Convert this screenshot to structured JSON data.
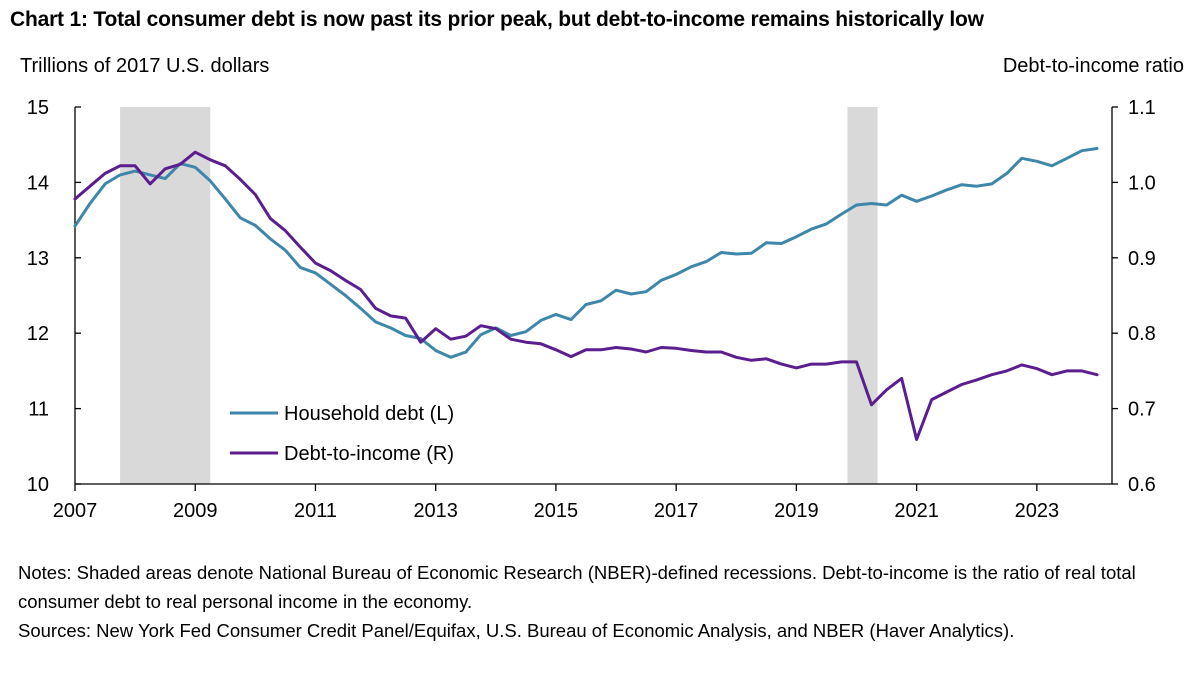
{
  "chart_data": {
    "type": "line",
    "title": "Chart 1: Total consumer debt is now past its prior peak, but debt-to-income remains historically low",
    "ylabel_left": "Trillions of 2017 U.S. dollars",
    "ylabel_right": "Debt-to-income ratio",
    "ylim_left": [
      10,
      15
    ],
    "ylim_right": [
      0.6,
      1.1
    ],
    "xlim": [
      2007,
      2024.25
    ],
    "x_ticks": [
      2007,
      2009,
      2011,
      2013,
      2015,
      2017,
      2019,
      2021,
      2023
    ],
    "x_tick_labels": [
      "2007",
      "2009",
      "2011",
      "2013",
      "2015",
      "2017",
      "2019",
      "2021",
      "2023"
    ],
    "y_ticks_left": [
      10,
      11,
      12,
      13,
      14,
      15
    ],
    "y_tick_labels_left": [
      "10",
      "11",
      "12",
      "13",
      "14",
      "15"
    ],
    "y_ticks_right": [
      0.6,
      0.7,
      0.8,
      0.9,
      1.0,
      1.1
    ],
    "y_tick_labels_right": [
      "0.6",
      "0.7",
      "0.8",
      "0.9",
      "1.0",
      "1.1"
    ],
    "recessions": [
      [
        2007.75,
        2009.25
      ],
      [
        2019.85,
        2020.35
      ]
    ],
    "legend_position": "lower-left",
    "series": [
      {
        "name": "Household debt (L)",
        "axis": "left",
        "color": "#3e86aa",
        "x": [
          2007.0,
          2007.25,
          2007.5,
          2007.75,
          2008.0,
          2008.25,
          2008.5,
          2008.75,
          2009.0,
          2009.25,
          2009.5,
          2009.75,
          2010.0,
          2010.25,
          2010.5,
          2010.75,
          2011.0,
          2011.25,
          2011.5,
          2011.75,
          2012.0,
          2012.25,
          2012.5,
          2012.75,
          2013.0,
          2013.25,
          2013.5,
          2013.75,
          2014.0,
          2014.25,
          2014.5,
          2014.75,
          2015.0,
          2015.25,
          2015.5,
          2015.75,
          2016.0,
          2016.25,
          2016.5,
          2016.75,
          2017.0,
          2017.25,
          2017.5,
          2017.75,
          2018.0,
          2018.25,
          2018.5,
          2018.75,
          2019.0,
          2019.25,
          2019.5,
          2019.75,
          2020.0,
          2020.25,
          2020.5,
          2020.75,
          2021.0,
          2021.25,
          2021.5,
          2021.75,
          2022.0,
          2022.25,
          2022.5,
          2022.75,
          2023.0,
          2023.25,
          2023.5,
          2023.75,
          2024.0
        ],
        "values": [
          13.42,
          13.72,
          13.98,
          14.1,
          14.15,
          14.1,
          14.05,
          14.25,
          14.2,
          14.02,
          13.78,
          13.53,
          13.43,
          13.25,
          13.1,
          12.87,
          12.8,
          12.65,
          12.5,
          12.33,
          12.15,
          12.07,
          11.97,
          11.93,
          11.77,
          11.68,
          11.75,
          11.98,
          12.07,
          11.97,
          12.02,
          12.17,
          12.25,
          12.18,
          12.38,
          12.43,
          12.57,
          12.52,
          12.55,
          12.7,
          12.78,
          12.88,
          12.95,
          13.07,
          13.05,
          13.06,
          13.2,
          13.19,
          13.28,
          13.38,
          13.45,
          13.58,
          13.7,
          13.72,
          13.7,
          13.83,
          13.75,
          13.82,
          13.9,
          13.97,
          13.95,
          13.98,
          14.12,
          14.32,
          14.28,
          14.22,
          14.32,
          14.42,
          14.45
        ]
      },
      {
        "name": "Debt-to-income (R)",
        "axis": "right",
        "color": "#5b1e8f",
        "x": [
          2007.0,
          2007.25,
          2007.5,
          2007.75,
          2008.0,
          2008.25,
          2008.5,
          2008.75,
          2009.0,
          2009.25,
          2009.5,
          2009.75,
          2010.0,
          2010.25,
          2010.5,
          2010.75,
          2011.0,
          2011.25,
          2011.5,
          2011.75,
          2012.0,
          2012.25,
          2012.5,
          2012.75,
          2013.0,
          2013.25,
          2013.5,
          2013.75,
          2014.0,
          2014.25,
          2014.5,
          2014.75,
          2015.0,
          2015.25,
          2015.5,
          2015.75,
          2016.0,
          2016.25,
          2016.5,
          2016.75,
          2017.0,
          2017.25,
          2017.5,
          2017.75,
          2018.0,
          2018.25,
          2018.5,
          2018.75,
          2019.0,
          2019.25,
          2019.5,
          2019.75,
          2020.0,
          2020.25,
          2020.5,
          2020.75,
          2021.0,
          2021.25,
          2021.5,
          2021.75,
          2022.0,
          2022.25,
          2022.5,
          2022.75,
          2023.0,
          2023.25,
          2023.5,
          2023.75,
          2024.0
        ],
        "values": [
          0.978,
          0.995,
          1.012,
          1.022,
          1.022,
          0.998,
          1.018,
          1.024,
          1.04,
          1.03,
          1.022,
          1.004,
          0.984,
          0.952,
          0.936,
          0.914,
          0.893,
          0.883,
          0.87,
          0.858,
          0.833,
          0.823,
          0.82,
          0.788,
          0.806,
          0.792,
          0.796,
          0.81,
          0.806,
          0.792,
          0.788,
          0.786,
          0.778,
          0.769,
          0.778,
          0.778,
          0.781,
          0.779,
          0.775,
          0.781,
          0.78,
          0.777,
          0.775,
          0.775,
          0.768,
          0.764,
          0.766,
          0.759,
          0.754,
          0.759,
          0.759,
          0.762,
          0.762,
          0.705,
          0.725,
          0.74,
          0.659,
          0.712,
          0.722,
          0.732,
          0.738,
          0.745,
          0.75,
          0.758,
          0.753,
          0.745,
          0.75,
          0.75,
          0.745
        ]
      }
    ]
  },
  "notes": "Notes: Shaded areas denote National Bureau of Economic Research (NBER)-defined recessions. Debt-to-income is the ratio of real total consumer debt to real personal income in the economy.",
  "sources": "Sources: New York Fed Consumer Credit Panel/Equifax, U.S. Bureau of Economic Analysis, and NBER (Haver Analytics)."
}
